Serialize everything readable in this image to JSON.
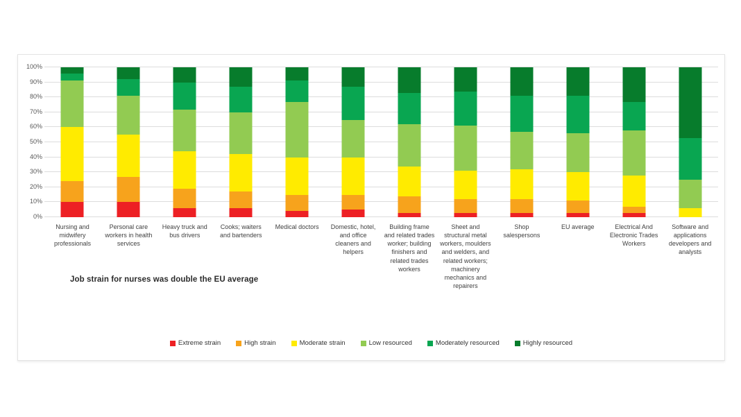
{
  "chart_data": {
    "type": "bar",
    "stacked": true,
    "orientation": "vertical",
    "grid": true,
    "ylim": [
      0,
      100
    ],
    "y_ticks": [
      "100%",
      "90%",
      "80%",
      "70%",
      "60%",
      "50%",
      "40%",
      "30%",
      "20%",
      "10%",
      "0%"
    ],
    "legend_position": "bottom",
    "annotation": "Job strain for nurses was double the EU average",
    "categories": [
      "Nursing and midwifery professionals",
      "Personal care workers in health services",
      "Heavy truck and bus drivers",
      "Cooks; waiters and bartenders",
      "Medical doctors",
      "Domestic, hotel, and office cleaners and helpers",
      "Building frame and related trades worker; building finishers and related trades workers",
      "Sheet and structural metal workers, moulders and welders, and related workers; machinery mechanics and repairers",
      "Shop salespersons",
      "EU average",
      "Electrical And Electronic Trades Workers",
      "Software and applications developers and analysts"
    ],
    "series": [
      {
        "name": "Extreme strain",
        "color": "#ed2024",
        "values": [
          10,
          10,
          6,
          6,
          4,
          5,
          3,
          3,
          3,
          3,
          3,
          0
        ]
      },
      {
        "name": "High strain",
        "color": "#f7a31c",
        "values": [
          14,
          17,
          13,
          11,
          11,
          10,
          11,
          9,
          9,
          8,
          4,
          0
        ]
      },
      {
        "name": "Moderate strain",
        "color": "#ffeb00",
        "values": [
          36,
          28,
          25,
          25,
          25,
          25,
          20,
          19,
          20,
          19,
          21,
          6
        ]
      },
      {
        "name": "Low resourced",
        "color": "#92cb52",
        "values": [
          31,
          26,
          28,
          28,
          37,
          25,
          28,
          30,
          25,
          26,
          30,
          19
        ]
      },
      {
        "name": "Moderately resourced",
        "color": "#09a651",
        "values": [
          5,
          11,
          18,
          17,
          14,
          22,
          21,
          23,
          24,
          25,
          19,
          28
        ]
      },
      {
        "name": "Highly resourced",
        "color": "#077c2c",
        "values": [
          4,
          8,
          10,
          13,
          9,
          13,
          17,
          16,
          19,
          19,
          23,
          47
        ]
      }
    ],
    "colors": {
      "gridline": "#dcdcdc",
      "axis_text": "#595959",
      "label_text": "#3f3f3f"
    }
  }
}
